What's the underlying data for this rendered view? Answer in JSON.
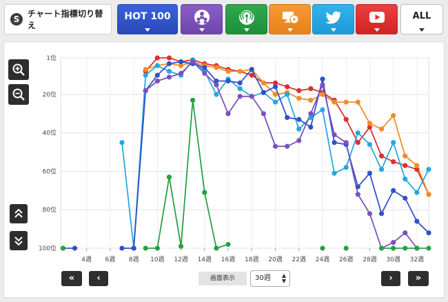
{
  "header": {
    "switch_label": "チャート指標切り替え",
    "tabs": [
      {
        "label": "HOT 100",
        "color": "#2f52c8"
      },
      {
        "icon": "people-icon",
        "color": "#7b51bb"
      },
      {
        "icon": "broadcast-icon",
        "color": "#27a044"
      },
      {
        "icon": "pc-disc-icon",
        "color": "#ef8d26"
      },
      {
        "icon": "twitter-icon",
        "color": "#27a7e0"
      },
      {
        "icon": "youtube-icon",
        "color": "#dc2f2f"
      },
      {
        "label": "ALL",
        "color": "#ffffff"
      }
    ]
  },
  "controls": {
    "zoom_in": "zoom-in-icon",
    "zoom_out": "zoom-out-icon",
    "scroll_up": "double-up-icon",
    "scroll_down": "double-down-icon",
    "first": "«",
    "prev": "‹",
    "next": "›",
    "last": "»",
    "view_label": "画面表示",
    "view_value": "30週"
  },
  "chart_data": {
    "type": "line",
    "x": [
      2,
      3,
      4,
      5,
      6,
      7,
      8,
      9,
      10,
      11,
      12,
      13,
      14,
      15,
      16,
      17,
      18,
      19,
      20,
      21,
      22,
      23,
      24,
      25,
      26,
      27,
      28,
      29,
      30,
      31,
      32,
      33
    ],
    "xticks": [
      4,
      6,
      8,
      10,
      12,
      14,
      16,
      18,
      20,
      22,
      24,
      26,
      28,
      30,
      32
    ],
    "xtick_labels": [
      "4週",
      "6週",
      "8週",
      "10週",
      "12週",
      "14週",
      "16週",
      "18週",
      "20週",
      "22週",
      "24週",
      "26週",
      "28週",
      "30週",
      "32週"
    ],
    "xlim": [
      1.8,
      33
    ],
    "ylim": [
      1,
      100
    ],
    "y_inverted": true,
    "yticks": [
      1,
      20,
      40,
      60,
      80,
      100
    ],
    "ytick_labels": [
      "1位",
      "20位",
      "40位",
      "60位",
      "80位",
      "100位"
    ],
    "grid": true,
    "series": [
      {
        "color": "#dc2f2f",
        "values": [
          null,
          null,
          null,
          null,
          null,
          null,
          null,
          8,
          1,
          1,
          3,
          2,
          4,
          5,
          7,
          8,
          10,
          14,
          14,
          16,
          18,
          17,
          19,
          23,
          33,
          45,
          37,
          52,
          55,
          57,
          59,
          72
        ]
      },
      {
        "color": "#ef8d26",
        "values": [
          null,
          null,
          null,
          null,
          null,
          null,
          null,
          7,
          5,
          4,
          5,
          3,
          5,
          6,
          8,
          8,
          7,
          14,
          20,
          19,
          22,
          23,
          20,
          24,
          24,
          24,
          35,
          38,
          31,
          52,
          57,
          72
        ]
      },
      {
        "color": "#27a7e0",
        "values": [
          null,
          null,
          null,
          null,
          null,
          45,
          100,
          10,
          5,
          8,
          10,
          2,
          8,
          20,
          12,
          17,
          21,
          19,
          24,
          20,
          38,
          32,
          28,
          61,
          58,
          40,
          46,
          59,
          45,
          64,
          71,
          59
        ]
      },
      {
        "color": "#2f52c8",
        "values": [
          100,
          100,
          null,
          null,
          null,
          100,
          100,
          18,
          10,
          4,
          3,
          4,
          6,
          13,
          13,
          14,
          7,
          19,
          16,
          32,
          33,
          37,
          12,
          45,
          46,
          68,
          61,
          82,
          70,
          74,
          86,
          92
        ]
      },
      {
        "color": "#7b51bb",
        "values": [
          null,
          null,
          null,
          null,
          null,
          null,
          null,
          18,
          13,
          11,
          9,
          3,
          9,
          15,
          30,
          21,
          21,
          30,
          47,
          47,
          44,
          30,
          15,
          41,
          45,
          72,
          82,
          100,
          97,
          92,
          100,
          null
        ]
      },
      {
        "color": "#27a044",
        "values": [
          100,
          null,
          null,
          null,
          null,
          null,
          null,
          100,
          100,
          63,
          99,
          23,
          71,
          100,
          98,
          null,
          null,
          null,
          null,
          null,
          null,
          null,
          100,
          null,
          100,
          null,
          null,
          100,
          100,
          100,
          100,
          100
        ]
      }
    ]
  }
}
